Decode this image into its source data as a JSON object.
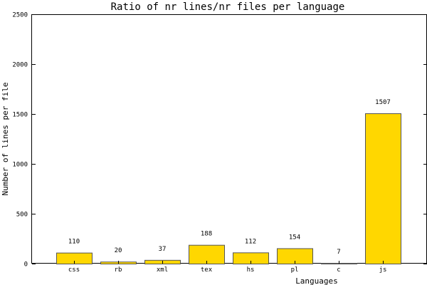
{
  "chart_data": {
    "type": "bar",
    "title": "Ratio of nr lines/nr files per language",
    "xlabel": "Languages",
    "ylabel": "Number of lines per file",
    "categories": [
      "css",
      "rb",
      "xml",
      "tex",
      "hs",
      "pl",
      "c",
      "js"
    ],
    "values": [
      110,
      20,
      37,
      188,
      112,
      154,
      7,
      1507
    ],
    "data_labels": [
      "110",
      "20",
      "37",
      "188",
      "112",
      "154",
      "7",
      "1507"
    ],
    "ylim": [
      0,
      2500
    ],
    "yticks": [
      0,
      500,
      1000,
      1500,
      2000,
      2500
    ],
    "ytick_labels": [
      "0",
      "500",
      "1000",
      "1500",
      "2000",
      "2500"
    ],
    "grid": false,
    "legend": "none",
    "bar_color": "#FFD700"
  }
}
